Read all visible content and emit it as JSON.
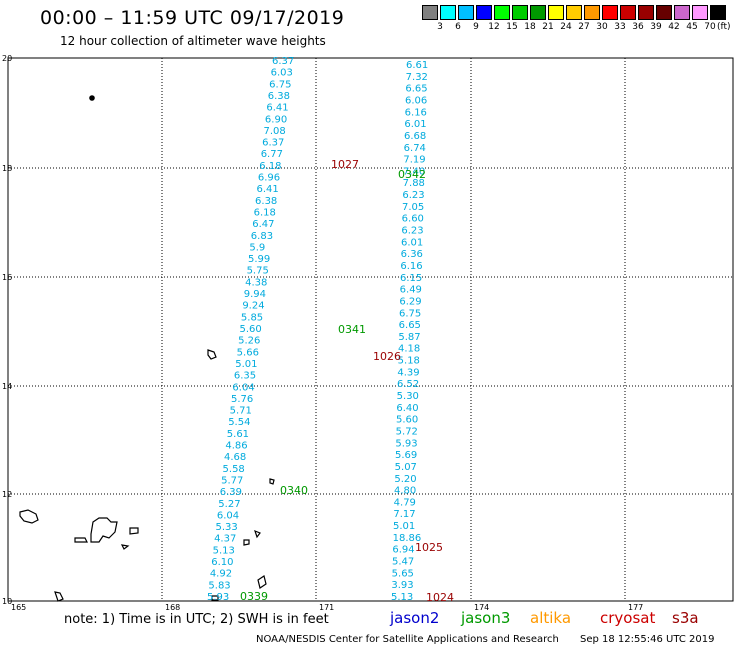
{
  "header": {
    "title": "00:00 – 11:59 UTC 09/17/2019",
    "subtitle": "12 hour collection of altimeter wave heights"
  },
  "legend": {
    "unit": "(ft)",
    "bins": [
      {
        "label": "",
        "color": "#808080"
      },
      {
        "label": "3",
        "color": "#00ffff"
      },
      {
        "label": "6",
        "color": "#00bfff"
      },
      {
        "label": "9",
        "color": "#0000ff"
      },
      {
        "label": "12",
        "color": "#00ff00"
      },
      {
        "label": "15",
        "color": "#00cc00"
      },
      {
        "label": "18",
        "color": "#009900"
      },
      {
        "label": "21",
        "color": "#ffff00"
      },
      {
        "label": "24",
        "color": "#ffcc00"
      },
      {
        "label": "27",
        "color": "#ff9900"
      },
      {
        "label": "30",
        "color": "#ff0000"
      },
      {
        "label": "33",
        "color": "#cc0000"
      },
      {
        "label": "36",
        "color": "#990000"
      },
      {
        "label": "39",
        "color": "#660000"
      },
      {
        "label": "42",
        "color": "#cc66cc"
      },
      {
        "label": "45",
        "color": "#ff99ff"
      },
      {
        "label": "70",
        "color": "#000000"
      }
    ]
  },
  "axes": {
    "lon_labels": [
      "165",
      "168",
      "171",
      "174",
      "177"
    ],
    "lat_labels": [
      "20",
      "18",
      "16",
      "14",
      "12",
      "10"
    ]
  },
  "tracks": {
    "track_a": {
      "color": "#00aadd",
      "values": [
        "6.37",
        "6.03",
        "6.75",
        "6.38",
        "6.41",
        "6.90",
        "7.08",
        "6.37",
        "6.77",
        "6.18",
        "6.96",
        "6.41",
        "6.38",
        "6.18",
        "6.47",
        "6.83",
        "5.9",
        "5.99",
        "5.75",
        "4.38",
        "9.94",
        "9.24",
        "5.85",
        "5.60",
        "5.26",
        "5.66",
        "5.01",
        "6.35",
        "6.04",
        "5.76",
        "5.71",
        "5.54",
        "5.61",
        "4.86",
        "4.68",
        "5.58",
        "5.77",
        "6.39",
        "5.27",
        "6.04",
        "5.33",
        "4.37",
        "5.13",
        "6.10",
        "4.92",
        "5.83",
        "5.93"
      ]
    },
    "track_b": {
      "color": "#00aadd",
      "values": [
        "6.61",
        "7.32",
        "6.65",
        "6.06",
        "6.16",
        "6.01",
        "6.68",
        "6.74",
        "7.19",
        "7.40",
        "7.88",
        "6.23",
        "7.05",
        "6.60",
        "6.23",
        "6.01",
        "6.36",
        "6.16",
        "6.15",
        "6.49",
        "6.29",
        "6.75",
        "6.65",
        "5.87",
        "4.18",
        "5.18",
        "4.39",
        "6.52",
        "5.30",
        "6.40",
        "5.60",
        "5.72",
        "5.93",
        "5.69",
        "5.07",
        "5.20",
        "4.80",
        "4.79",
        "7.17",
        "5.01",
        "18.86",
        "6.94",
        "5.47",
        "5.65",
        "3.93",
        "5.13"
      ]
    }
  },
  "pass_labels": [
    {
      "text": "1027",
      "color": "#990000"
    },
    {
      "text": "0342",
      "color": "#009900"
    },
    {
      "text": "0341",
      "color": "#009900"
    },
    {
      "text": "1026",
      "color": "#990000"
    },
    {
      "text": "0340",
      "color": "#009900"
    },
    {
      "text": "1025",
      "color": "#990000"
    },
    {
      "text": "0339",
      "color": "#009900"
    },
    {
      "text": "1024",
      "color": "#990000"
    }
  ],
  "footer": {
    "note": "note: 1) Time is in UTC; 2) SWH is in feet",
    "satellites": [
      {
        "name": "jason2",
        "color": "#0000cc"
      },
      {
        "name": "jason3",
        "color": "#009900"
      },
      {
        "name": "altika",
        "color": "#ff9900"
      },
      {
        "name": "cryosat",
        "color": "#cc0000"
      },
      {
        "name": "s3a",
        "color": "#990000"
      }
    ],
    "credit": "NOAA/NESDIS Center for Satellite Applications and Research",
    "timestamp": "Sep 18 12:55:46 UTC 2019"
  }
}
